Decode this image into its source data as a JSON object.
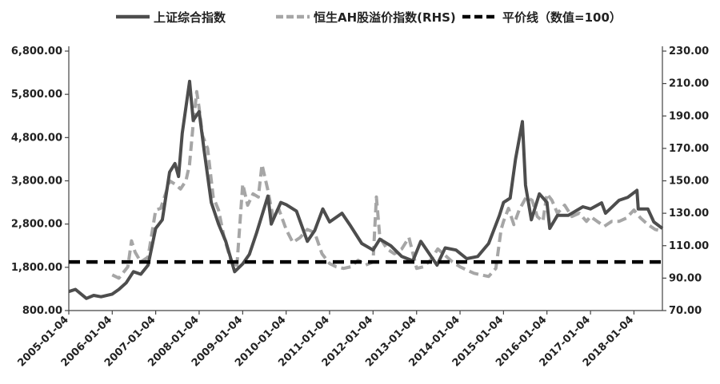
{
  "chart_data": {
    "type": "line",
    "title": "",
    "xlabel": "",
    "ylabel_left": "",
    "ylabel_right": "",
    "legend_position": "top",
    "grid": false,
    "left_axis": {
      "ylim": [
        800,
        6800
      ],
      "ticks": [
        800,
        1800,
        2800,
        3800,
        4800,
        5800,
        6800
      ],
      "tick_labels": [
        "800.00",
        "1,800.00",
        "2,800.00",
        "3,800.00",
        "4,800.00",
        "5,800.00",
        "6,800.00"
      ]
    },
    "right_axis": {
      "ylim": [
        70,
        230
      ],
      "ticks": [
        70,
        90,
        110,
        130,
        150,
        170,
        190,
        210,
        230
      ],
      "tick_labels": [
        "70.00",
        "90.00",
        "110.00",
        "130.00",
        "150.00",
        "170.00",
        "190.00",
        "210.00",
        "230.00"
      ]
    },
    "x_axis": {
      "range": [
        "2005-01-04",
        "2018-08-31"
      ],
      "ticks": [
        "2005-01-04",
        "2006-01-04",
        "2007-01-04",
        "2008-01-04",
        "2009-01-04",
        "2010-01-04",
        "2011-01-04",
        "2012-01-04",
        "2013-01-04",
        "2014-01-04",
        "2015-01-04",
        "2016-01-04",
        "2017-01-04",
        "2018-01-04"
      ]
    },
    "series": [
      {
        "name": "上证综合指数",
        "axis": "left",
        "color": "#4d4d4d",
        "style": "solid",
        "points": [
          [
            "2005-01-04",
            1240
          ],
          [
            "2005-03-01",
            1290
          ],
          [
            "2005-06-01",
            1080
          ],
          [
            "2005-08-01",
            1150
          ],
          [
            "2005-10-01",
            1120
          ],
          [
            "2006-01-04",
            1180
          ],
          [
            "2006-03-01",
            1290
          ],
          [
            "2006-05-01",
            1440
          ],
          [
            "2006-07-01",
            1700
          ],
          [
            "2006-09-01",
            1640
          ],
          [
            "2006-11-01",
            1850
          ],
          [
            "2007-01-04",
            2700
          ],
          [
            "2007-03-01",
            2900
          ],
          [
            "2007-05-01",
            4000
          ],
          [
            "2007-06-15",
            4200
          ],
          [
            "2007-07-15",
            3900
          ],
          [
            "2007-08-15",
            4900
          ],
          [
            "2007-10-16",
            6100
          ],
          [
            "2007-11-15",
            5200
          ],
          [
            "2008-01-04",
            5400
          ],
          [
            "2008-02-15",
            4500
          ],
          [
            "2008-04-15",
            3300
          ],
          [
            "2008-06-15",
            2800
          ],
          [
            "2008-08-15",
            2400
          ],
          [
            "2008-10-28",
            1700
          ],
          [
            "2009-01-04",
            1880
          ],
          [
            "2009-03-01",
            2100
          ],
          [
            "2009-05-01",
            2600
          ],
          [
            "2009-08-04",
            3450
          ],
          [
            "2009-09-01",
            2800
          ],
          [
            "2009-11-20",
            3300
          ],
          [
            "2010-01-04",
            3250
          ],
          [
            "2010-04-01",
            3100
          ],
          [
            "2010-07-01",
            2400
          ],
          [
            "2010-09-01",
            2650
          ],
          [
            "2010-11-08",
            3150
          ],
          [
            "2011-01-04",
            2850
          ],
          [
            "2011-04-18",
            3050
          ],
          [
            "2011-07-01",
            2750
          ],
          [
            "2011-10-01",
            2350
          ],
          [
            "2012-01-04",
            2200
          ],
          [
            "2012-03-01",
            2450
          ],
          [
            "2012-06-01",
            2300
          ],
          [
            "2012-09-01",
            2050
          ],
          [
            "2012-12-04",
            1950
          ],
          [
            "2013-02-08",
            2400
          ],
          [
            "2013-06-25",
            1850
          ],
          [
            "2013-09-01",
            2250
          ],
          [
            "2013-12-01",
            2200
          ],
          [
            "2014-03-01",
            2000
          ],
          [
            "2014-06-01",
            2050
          ],
          [
            "2014-09-01",
            2350
          ],
          [
            "2014-12-01",
            3000
          ],
          [
            "2015-01-04",
            3300
          ],
          [
            "2015-03-01",
            3400
          ],
          [
            "2015-04-15",
            4300
          ],
          [
            "2015-06-12",
            5170
          ],
          [
            "2015-07-08",
            3700
          ],
          [
            "2015-08-26",
            2900
          ],
          [
            "2015-11-01",
            3500
          ],
          [
            "2016-01-04",
            3300
          ],
          [
            "2016-01-28",
            2700
          ],
          [
            "2016-04-01",
            3000
          ],
          [
            "2016-07-01",
            3000
          ],
          [
            "2016-11-01",
            3200
          ],
          [
            "2017-01-04",
            3150
          ],
          [
            "2017-04-07",
            3290
          ],
          [
            "2017-05-10",
            3050
          ],
          [
            "2017-09-01",
            3350
          ],
          [
            "2017-11-14",
            3420
          ],
          [
            "2018-01-29",
            3580
          ],
          [
            "2018-02-09",
            3150
          ],
          [
            "2018-05-01",
            3150
          ],
          [
            "2018-06-20",
            2850
          ],
          [
            "2018-08-31",
            2700
          ]
        ]
      },
      {
        "name": "恒生AH股溢价指数(RHS)",
        "axis": "right",
        "color": "#a6a6a6",
        "style": "dashed",
        "points": [
          [
            "2006-01-04",
            92
          ],
          [
            "2006-03-01",
            90
          ],
          [
            "2006-05-15",
            97
          ],
          [
            "2006-06-15",
            113
          ],
          [
            "2006-07-15",
            106
          ],
          [
            "2006-09-01",
            100
          ],
          [
            "2006-11-01",
            103
          ],
          [
            "2007-01-04",
            132
          ],
          [
            "2007-02-15",
            133
          ],
          [
            "2007-04-01",
            143
          ],
          [
            "2007-05-01",
            150
          ],
          [
            "2007-06-15",
            148
          ],
          [
            "2007-08-01",
            145
          ],
          [
            "2007-09-15",
            150
          ],
          [
            "2007-10-15",
            160
          ],
          [
            "2007-11-15",
            185
          ],
          [
            "2007-12-15",
            205
          ],
          [
            "2008-01-04",
            195
          ],
          [
            "2008-02-01",
            178
          ],
          [
            "2008-03-15",
            170
          ],
          [
            "2008-05-01",
            140
          ],
          [
            "2008-06-15",
            132
          ],
          [
            "2008-08-01",
            115
          ],
          [
            "2008-10-01",
            100
          ],
          [
            "2008-11-15",
            96
          ],
          [
            "2009-01-04",
            148
          ],
          [
            "2009-02-15",
            135
          ],
          [
            "2009-04-01",
            142
          ],
          [
            "2009-05-15",
            140
          ],
          [
            "2009-06-15",
            160
          ],
          [
            "2009-08-01",
            145
          ],
          [
            "2009-09-15",
            128
          ],
          [
            "2009-11-01",
            133
          ],
          [
            "2010-01-04",
            120
          ],
          [
            "2010-03-01",
            112
          ],
          [
            "2010-05-01",
            115
          ],
          [
            "2010-07-01",
            120
          ],
          [
            "2010-09-01",
            118
          ],
          [
            "2010-11-01",
            105
          ],
          [
            "2011-01-04",
            99
          ],
          [
            "2011-03-01",
            97
          ],
          [
            "2011-05-01",
            96
          ],
          [
            "2011-07-01",
            97
          ],
          [
            "2011-09-01",
            101
          ],
          [
            "2011-11-01",
            98
          ],
          [
            "2012-01-04",
            100
          ],
          [
            "2012-02-01",
            140
          ],
          [
            "2012-03-01",
            115
          ],
          [
            "2012-05-01",
            108
          ],
          [
            "2012-07-01",
            105
          ],
          [
            "2012-09-01",
            108
          ],
          [
            "2012-11-01",
            115
          ],
          [
            "2013-01-04",
            96
          ],
          [
            "2013-03-01",
            97
          ],
          [
            "2013-05-01",
            101
          ],
          [
            "2013-07-01",
            108
          ],
          [
            "2013-09-01",
            104
          ],
          [
            "2013-11-01",
            100
          ],
          [
            "2014-01-04",
            97
          ],
          [
            "2014-03-01",
            95
          ],
          [
            "2014-05-01",
            93
          ],
          [
            "2014-07-01",
            92
          ],
          [
            "2014-09-01",
            91
          ],
          [
            "2014-11-01",
            96
          ],
          [
            "2014-12-15",
            120
          ],
          [
            "2015-01-04",
            125
          ],
          [
            "2015-02-15",
            133
          ],
          [
            "2015-04-01",
            123
          ],
          [
            "2015-05-15",
            132
          ],
          [
            "2015-07-15",
            140
          ],
          [
            "2015-09-01",
            138
          ],
          [
            "2015-10-15",
            128
          ],
          [
            "2015-12-01",
            125
          ],
          [
            "2016-01-04",
            142
          ],
          [
            "2016-02-15",
            138
          ],
          [
            "2016-04-01",
            130
          ],
          [
            "2016-06-01",
            135
          ],
          [
            "2016-08-01",
            128
          ],
          [
            "2016-10-01",
            130
          ],
          [
            "2016-12-01",
            125
          ],
          [
            "2017-01-04",
            128
          ],
          [
            "2017-03-01",
            125
          ],
          [
            "2017-05-01",
            122
          ],
          [
            "2017-07-01",
            125
          ],
          [
            "2017-09-01",
            125
          ],
          [
            "2017-11-01",
            127
          ],
          [
            "2018-01-04",
            132
          ],
          [
            "2018-03-01",
            127
          ],
          [
            "2018-05-01",
            123
          ],
          [
            "2018-07-01",
            120
          ],
          [
            "2018-08-31",
            119
          ]
        ]
      },
      {
        "name": "平价线（数值=100）",
        "axis": "right",
        "color": "#000000",
        "style": "dashed",
        "points": [
          [
            "2005-01-04",
            100
          ],
          [
            "2018-08-31",
            100
          ]
        ]
      }
    ]
  }
}
